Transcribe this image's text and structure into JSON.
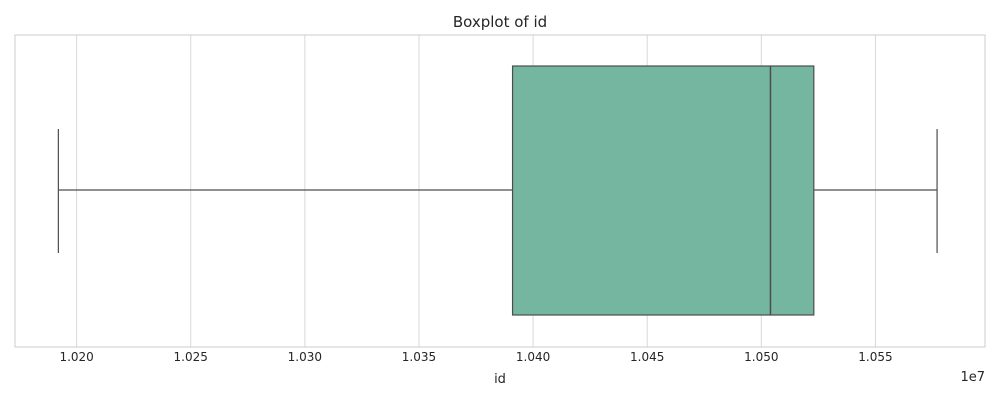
{
  "chart_data": {
    "type": "box",
    "title": "Boxplot of id",
    "xlabel": "id",
    "ylabel": "",
    "offset_label": "1e7",
    "xlim": [
      1.0173,
      1.0598
    ],
    "tick_values": [
      1.02,
      1.025,
      1.03,
      1.035,
      1.04,
      1.045,
      1.05,
      1.055
    ],
    "tick_labels": [
      "1.020",
      "1.025",
      "1.030",
      "1.035",
      "1.040",
      "1.045",
      "1.050",
      "1.055"
    ],
    "orientation": "horizontal",
    "grid": true,
    "box": {
      "whisker_low": 1.0192,
      "q1": 1.0391,
      "median": 1.0504,
      "q3": 1.0523,
      "whisker_high": 1.0577
    },
    "colors": {
      "box_fill": "#74b6a0",
      "line": "#4d4d4d",
      "grid": "#d9d9d9",
      "frame": "#cccccc"
    }
  }
}
